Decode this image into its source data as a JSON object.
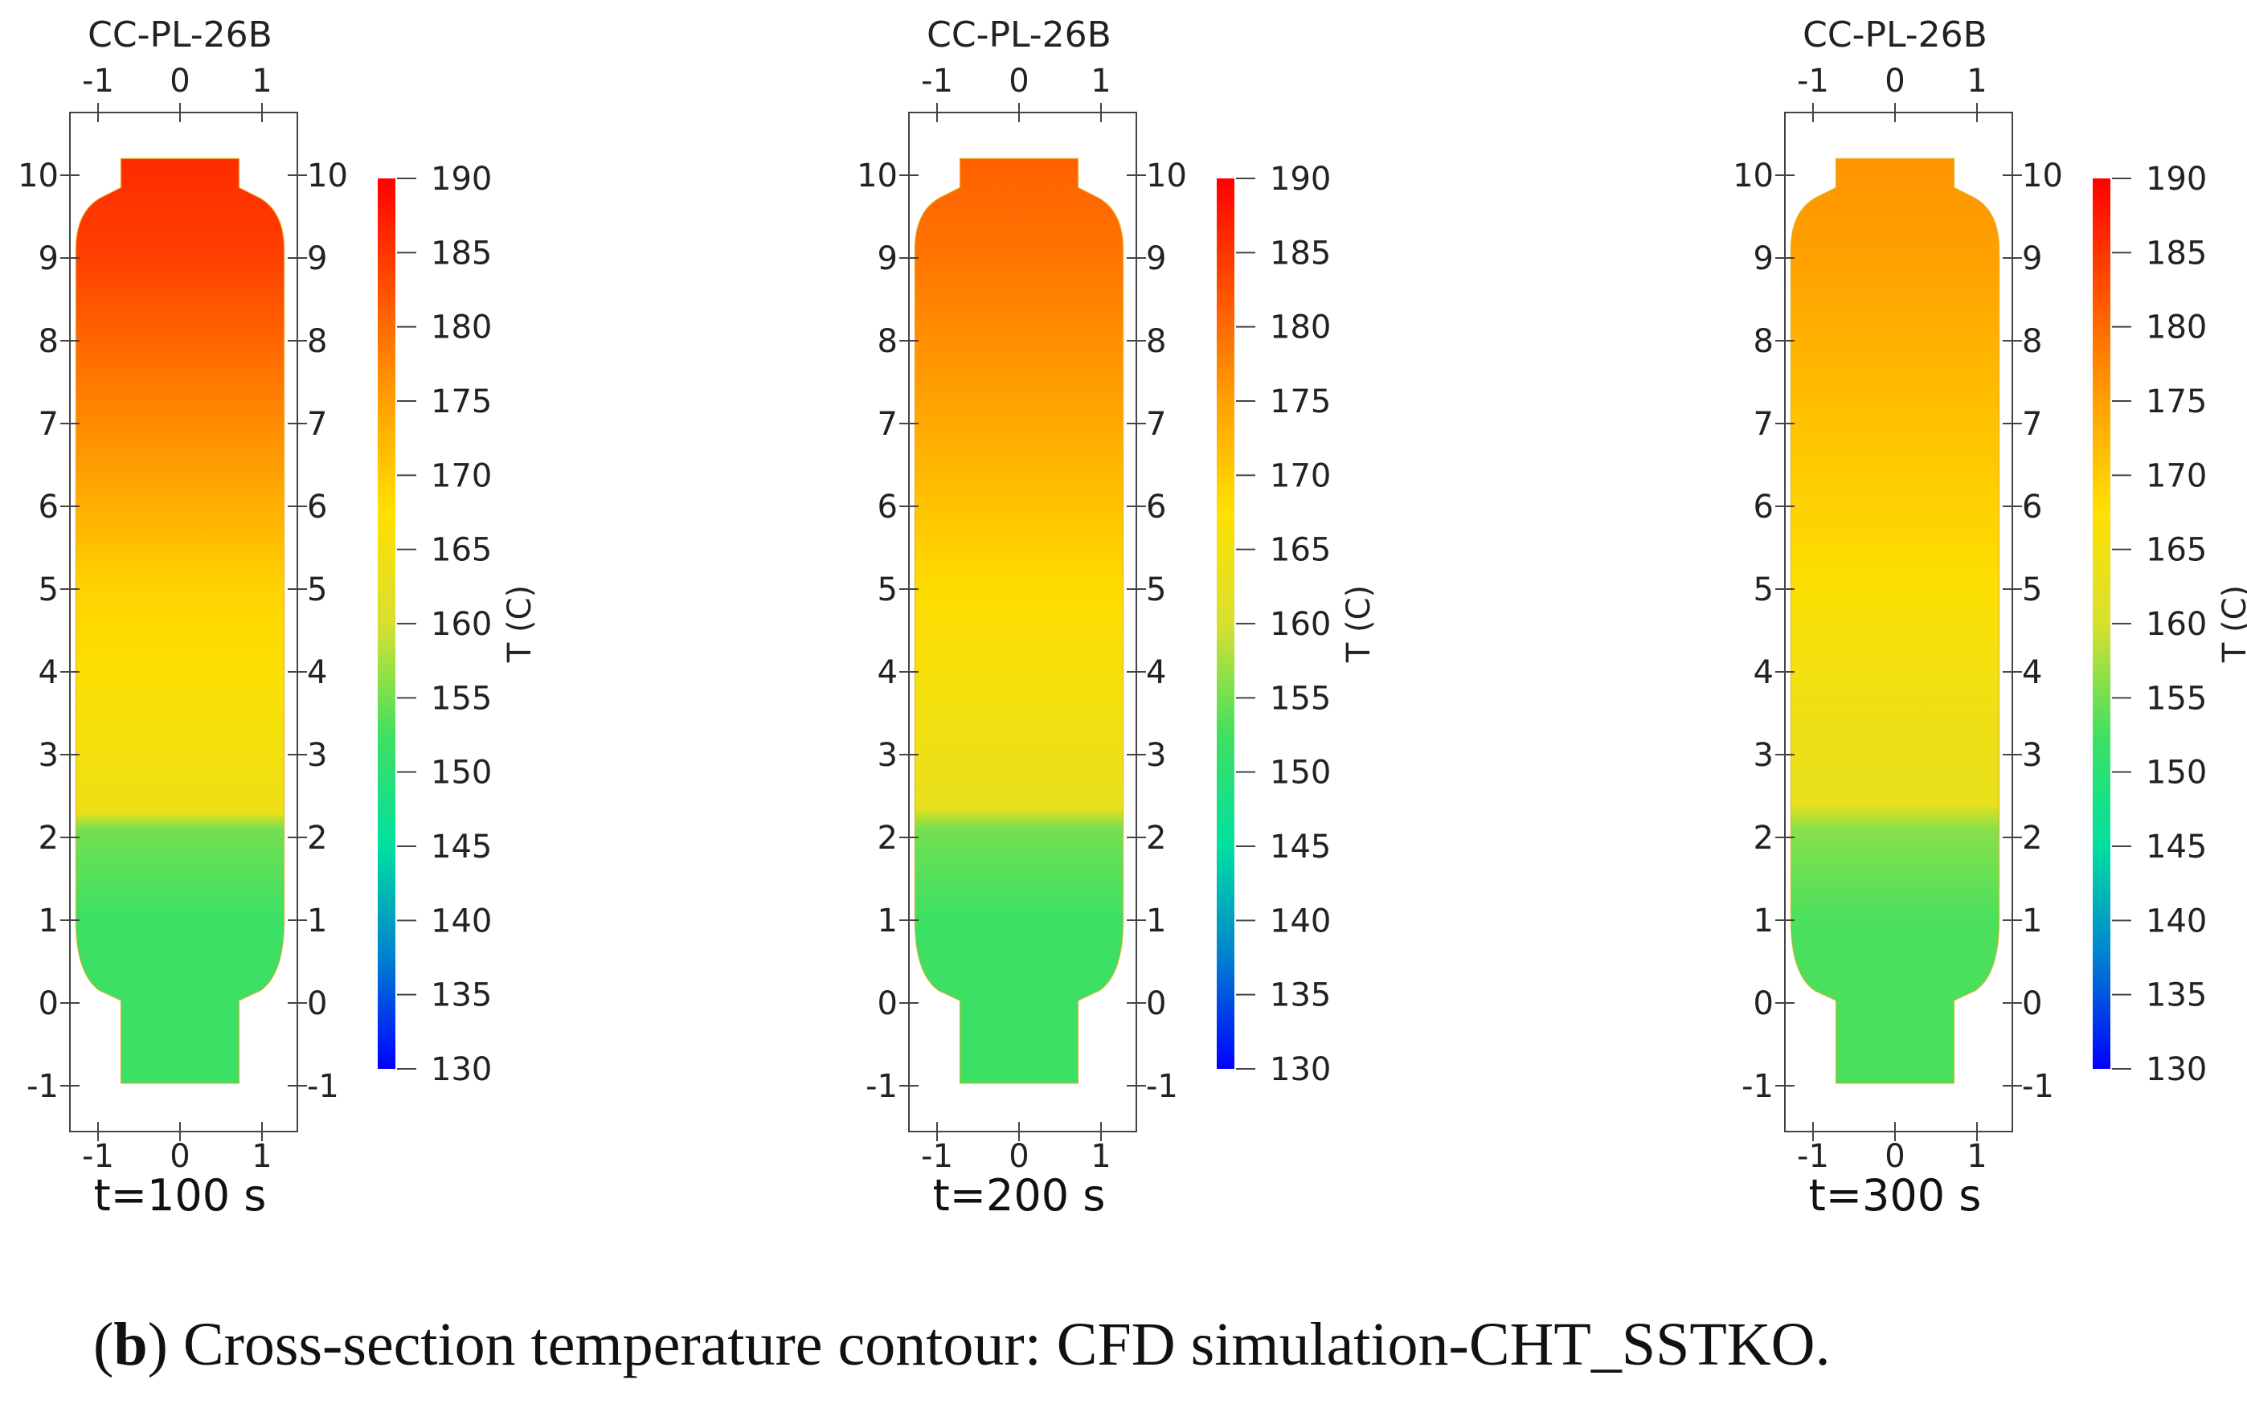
{
  "figure": {
    "caption_letter": "b",
    "caption_open": "(",
    "caption_close": ")",
    "caption_text": " Cross-section temperature contour: CFD simulation-CHT_SSTKO."
  },
  "colors": {
    "colormap": [
      "#0000ff",
      "#0080d0",
      "#00e0a0",
      "#40e060",
      "#d8e030",
      "#ffe000",
      "#ffa000",
      "#ff5000",
      "#ff0000"
    ],
    "axis": "#444444",
    "text": "#222222"
  },
  "chart_data": [
    {
      "type": "heatmap",
      "title": "CC-PL-26B",
      "subtitle": "t=100 s",
      "colorbar_label": "T (C)",
      "colorbar_range": [
        130,
        190
      ],
      "colorbar_ticks": [
        190,
        185,
        180,
        175,
        170,
        165,
        160,
        155,
        150,
        145,
        140,
        135,
        130
      ],
      "x_ticks": [
        -1,
        0,
        1
      ],
      "y_ticks": [
        10,
        9,
        8,
        7,
        6,
        5,
        4,
        3,
        2,
        1,
        0,
        -1
      ],
      "xlim": [
        -1.4,
        1.4
      ],
      "ylim": [
        -1.5,
        10.7
      ],
      "temperature_profile": [
        {
          "y": -1.0,
          "T": 152
        },
        {
          "y": 1.0,
          "T": 152
        },
        {
          "y": 2.1,
          "T": 155
        },
        {
          "y": 2.3,
          "T": 164
        },
        {
          "y": 4.0,
          "T": 167
        },
        {
          "y": 5.0,
          "T": 169
        },
        {
          "y": 7.0,
          "T": 177
        },
        {
          "y": 9.0,
          "T": 184
        },
        {
          "y": 10.2,
          "T": 186
        }
      ]
    },
    {
      "type": "heatmap",
      "title": "CC-PL-26B",
      "subtitle": "t=200 s",
      "colorbar_label": "T (C)",
      "colorbar_range": [
        130,
        190
      ],
      "colorbar_ticks": [
        190,
        185,
        180,
        175,
        170,
        165,
        160,
        155,
        150,
        145,
        140,
        135,
        130
      ],
      "x_ticks": [
        -1,
        0,
        1
      ],
      "y_ticks": [
        10,
        9,
        8,
        7,
        6,
        5,
        4,
        3,
        2,
        1,
        0,
        -1
      ],
      "xlim": [
        -1.4,
        1.4
      ],
      "ylim": [
        -1.5,
        10.7
      ],
      "temperature_profile": [
        {
          "y": -1.0,
          "T": 152
        },
        {
          "y": 1.0,
          "T": 152
        },
        {
          "y": 2.1,
          "T": 155
        },
        {
          "y": 2.35,
          "T": 163
        },
        {
          "y": 4.0,
          "T": 166
        },
        {
          "y": 5.0,
          "T": 168
        },
        {
          "y": 7.0,
          "T": 174
        },
        {
          "y": 9.0,
          "T": 179
        },
        {
          "y": 10.2,
          "T": 181
        }
      ]
    },
    {
      "type": "heatmap",
      "title": "CC-PL-26B",
      "subtitle": "t=300 s",
      "colorbar_label": "T (C)",
      "colorbar_range": [
        130,
        190
      ],
      "colorbar_ticks": [
        190,
        185,
        180,
        175,
        170,
        165,
        160,
        155,
        150,
        145,
        140,
        135,
        130
      ],
      "x_ticks": [
        -1,
        0,
        1
      ],
      "y_ticks": [
        10,
        9,
        8,
        7,
        6,
        5,
        4,
        3,
        2,
        1,
        0,
        -1
      ],
      "xlim": [
        -1.4,
        1.4
      ],
      "ylim": [
        -1.5,
        10.7
      ],
      "temperature_profile": [
        {
          "y": -1.0,
          "T": 153
        },
        {
          "y": 1.0,
          "T": 153
        },
        {
          "y": 2.1,
          "T": 156
        },
        {
          "y": 2.4,
          "T": 163
        },
        {
          "y": 4.0,
          "T": 165
        },
        {
          "y": 5.0,
          "T": 167
        },
        {
          "y": 7.0,
          "T": 171
        },
        {
          "y": 9.0,
          "T": 175
        },
        {
          "y": 10.2,
          "T": 176
        }
      ]
    }
  ]
}
